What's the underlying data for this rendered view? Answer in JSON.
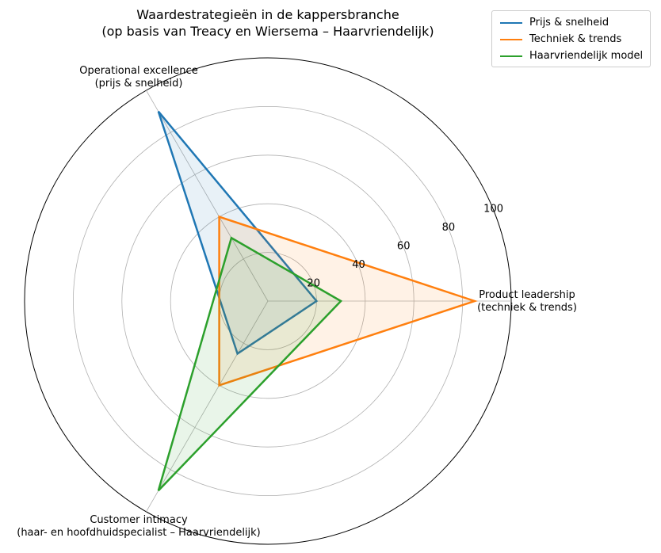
{
  "chart_data": {
    "type": "radar",
    "title": "Waardestrategieën in de kappersbranche",
    "subtitle": "(op basis van Treacy en Wiersema – Haarvriendelijk)",
    "axes": [
      {
        "line1": "Product leadership",
        "line2": "(techniek & trends)"
      },
      {
        "line1": "Operational excellence",
        "line2": "(prijs & snelheid)"
      },
      {
        "line1": "Customer intimacy",
        "line2": "(haar- en hoofdhuidspecialist – Haarvriendelijk)"
      }
    ],
    "rlim": [
      0,
      100
    ],
    "rticks": [
      20,
      40,
      60,
      80,
      100
    ],
    "grid": true,
    "legend_position": "top-right",
    "series": [
      {
        "name": "Prijs & snelheid",
        "values": [
          20,
          90,
          25
        ],
        "color": "#1f77b4"
      },
      {
        "name": "Techniek & trends",
        "values": [
          85,
          40,
          40
        ],
        "color": "#ff7f0e"
      },
      {
        "name": "Haarvriendelijk model",
        "values": [
          30,
          30,
          90
        ],
        "color": "#2ca02c"
      }
    ]
  }
}
